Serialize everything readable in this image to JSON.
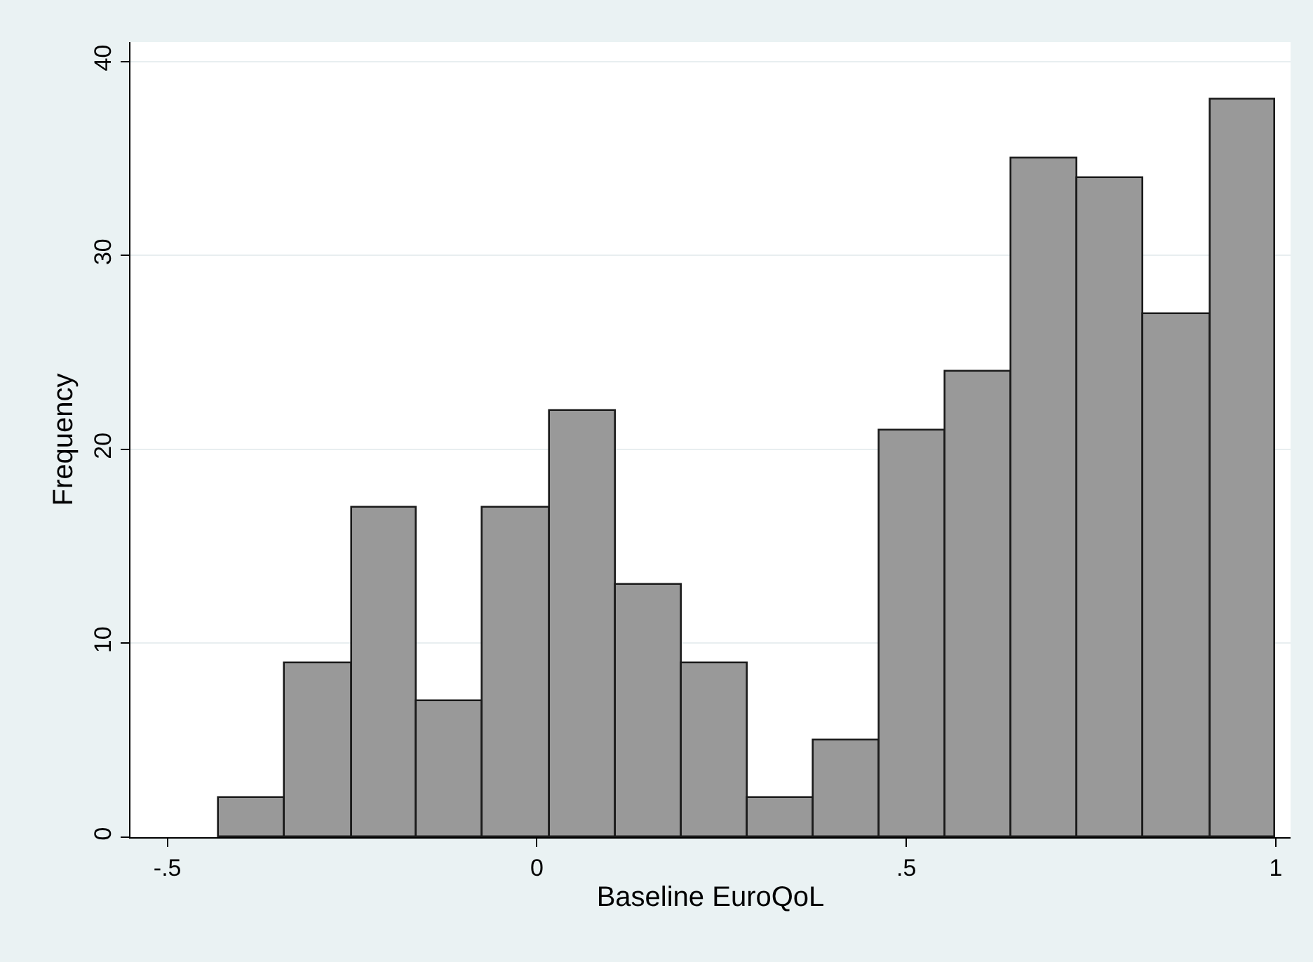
{
  "chart_data": {
    "type": "histogram",
    "xlabel": "Baseline EuroQoL",
    "ylabel": "Frequency",
    "bins": [
      -0.43,
      -0.341,
      -0.251,
      -0.162,
      -0.073,
      0.017,
      0.106,
      0.196,
      0.285,
      0.374,
      0.464,
      0.553,
      0.643,
      0.732,
      0.821,
      0.911,
      1.0
    ],
    "values": [
      2,
      9,
      17,
      7,
      17,
      22,
      13,
      9,
      2,
      5,
      21,
      24,
      35,
      34,
      27,
      38
    ],
    "color": "#999999",
    "xlim": [
      -0.55,
      1.02
    ],
    "xticks": [
      {
        "value": -0.5,
        "label": "-.5"
      },
      0,
      {
        "value": 0.5,
        "label": ".5"
      },
      1
    ],
    "ylim": [
      0,
      41
    ],
    "yticks": [
      0,
      10,
      20,
      30,
      40
    ],
    "grid": "y"
  }
}
